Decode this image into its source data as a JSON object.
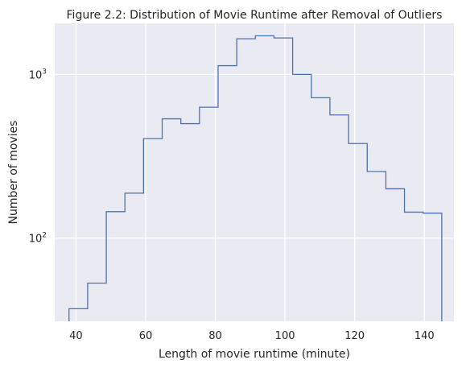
{
  "chart_data": {
    "type": "histogram",
    "title": "Figure 2.2: Distribution of Movie Runtime after Removal of Outliers",
    "xlabel": "Length of movie runtime (minute)",
    "ylabel": "Number of movies",
    "x_ticks": [
      40,
      60,
      80,
      100,
      120,
      140
    ],
    "x_tick_labels": [
      "40",
      "60",
      "80",
      "100",
      "120",
      "140"
    ],
    "xlim": [
      33.9,
      148.5
    ],
    "y_scale": "log",
    "ylim": [
      31,
      2050
    ],
    "y_ticks": [
      100,
      1000
    ],
    "y_tick_labels": [
      {
        "base": "10",
        "exp": "2"
      },
      {
        "base": "10",
        "exp": "3"
      }
    ],
    "grid": true,
    "style": "step",
    "line_color": "#4c72b0",
    "background_color": "#eaeaf2",
    "bin_edges": [
      38,
      43.35,
      48.7,
      54.05,
      59.4,
      64.75,
      70.1,
      75.45,
      80.8,
      86.15,
      91.5,
      96.85,
      102.2,
      107.55,
      112.9,
      118.25,
      123.6,
      128.95,
      134.3,
      139.65,
      145
    ],
    "counts": [
      37,
      53,
      145,
      188,
      405,
      535,
      500,
      630,
      1130,
      1650,
      1720,
      1670,
      1000,
      720,
      565,
      378,
      255,
      200,
      144,
      142
    ]
  }
}
